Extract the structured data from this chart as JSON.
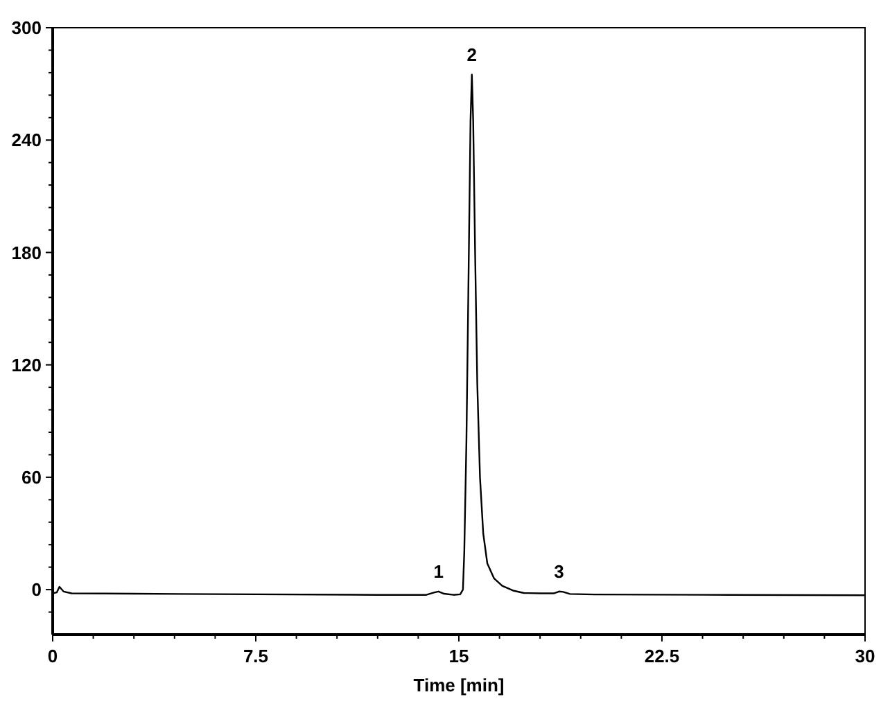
{
  "chart_data": {
    "type": "line",
    "xlabel": "Time [min]",
    "x": [
      0,
      0.15,
      0.25,
      0.4,
      0.7,
      3,
      7.5,
      12,
      13.8,
      14.1,
      14.25,
      14.45,
      14.8,
      15.05,
      15.15,
      15.2,
      15.28,
      15.36,
      15.43,
      15.48,
      15.53,
      15.6,
      15.68,
      15.78,
      15.9,
      16.05,
      16.3,
      16.6,
      17,
      17.4,
      18,
      18.5,
      18.7,
      18.85,
      19.1,
      20,
      25,
      30
    ],
    "series": [
      {
        "color": "#000000",
        "values": [
          -2,
          -1.5,
          1.5,
          -1,
          -2,
          -2.2,
          -2.5,
          -2.8,
          -2.8,
          -1.5,
          -1,
          -2.2,
          -2.8,
          -2.5,
          0,
          20,
          80,
          170,
          250,
          275,
          250,
          180,
          110,
          60,
          30,
          14,
          6,
          2,
          -0.5,
          -1.8,
          -2,
          -2,
          -1,
          -1.2,
          -2.3,
          -2.6,
          -2.8,
          -3
        ]
      }
    ],
    "xlim": [
      0,
      30
    ],
    "ylim": [
      -24,
      300
    ],
    "xticks": [
      0,
      {
        "value": 1.5,
        "label": null
      },
      {
        "value": 3,
        "label": null
      },
      {
        "value": 4.5,
        "label": null
      },
      {
        "value": 6,
        "label": null
      },
      7.5,
      {
        "value": 9,
        "label": null
      },
      {
        "value": 10.5,
        "label": null
      },
      {
        "value": 12,
        "label": null
      },
      {
        "value": 13.5,
        "label": null
      },
      15,
      {
        "value": 16.5,
        "label": null
      },
      {
        "value": 18,
        "label": null
      },
      {
        "value": 19.5,
        "label": null
      },
      {
        "value": 21,
        "label": null
      },
      22.5,
      {
        "value": 24,
        "label": null
      },
      {
        "value": 25.5,
        "label": null
      },
      {
        "value": 27,
        "label": null
      },
      {
        "value": 28.5,
        "label": null
      },
      30
    ],
    "yticks": [
      {
        "value": -12,
        "label": null
      },
      0,
      {
        "value": 12,
        "label": null
      },
      {
        "value": 24,
        "label": null
      },
      {
        "value": 36,
        "label": null
      },
      {
        "value": 48,
        "label": null
      },
      60,
      {
        "value": 72,
        "label": null
      },
      {
        "value": 84,
        "label": null
      },
      {
        "value": 96,
        "label": null
      },
      {
        "value": 108,
        "label": null
      },
      120,
      {
        "value": 132,
        "label": null
      },
      {
        "value": 144,
        "label": null
      },
      {
        "value": 156,
        "label": null
      },
      {
        "value": 168,
        "label": null
      },
      180,
      {
        "value": 192,
        "label": null
      },
      {
        "value": 204,
        "label": null
      },
      {
        "value": 216,
        "label": null
      },
      {
        "value": 228,
        "label": null
      },
      240,
      {
        "value": 252,
        "label": null
      },
      {
        "value": 264,
        "label": null
      },
      {
        "value": 276,
        "label": null
      },
      {
        "value": 288,
        "label": null
      },
      300
    ],
    "annotations": [
      {
        "text": "1",
        "x": 14.25,
        "y": -1
      },
      {
        "text": "2",
        "x": 15.48,
        "y": 275
      },
      {
        "text": "3",
        "x": 18.7,
        "y": -1
      }
    ],
    "grid": false,
    "marker": "none",
    "line_style": "solid"
  }
}
